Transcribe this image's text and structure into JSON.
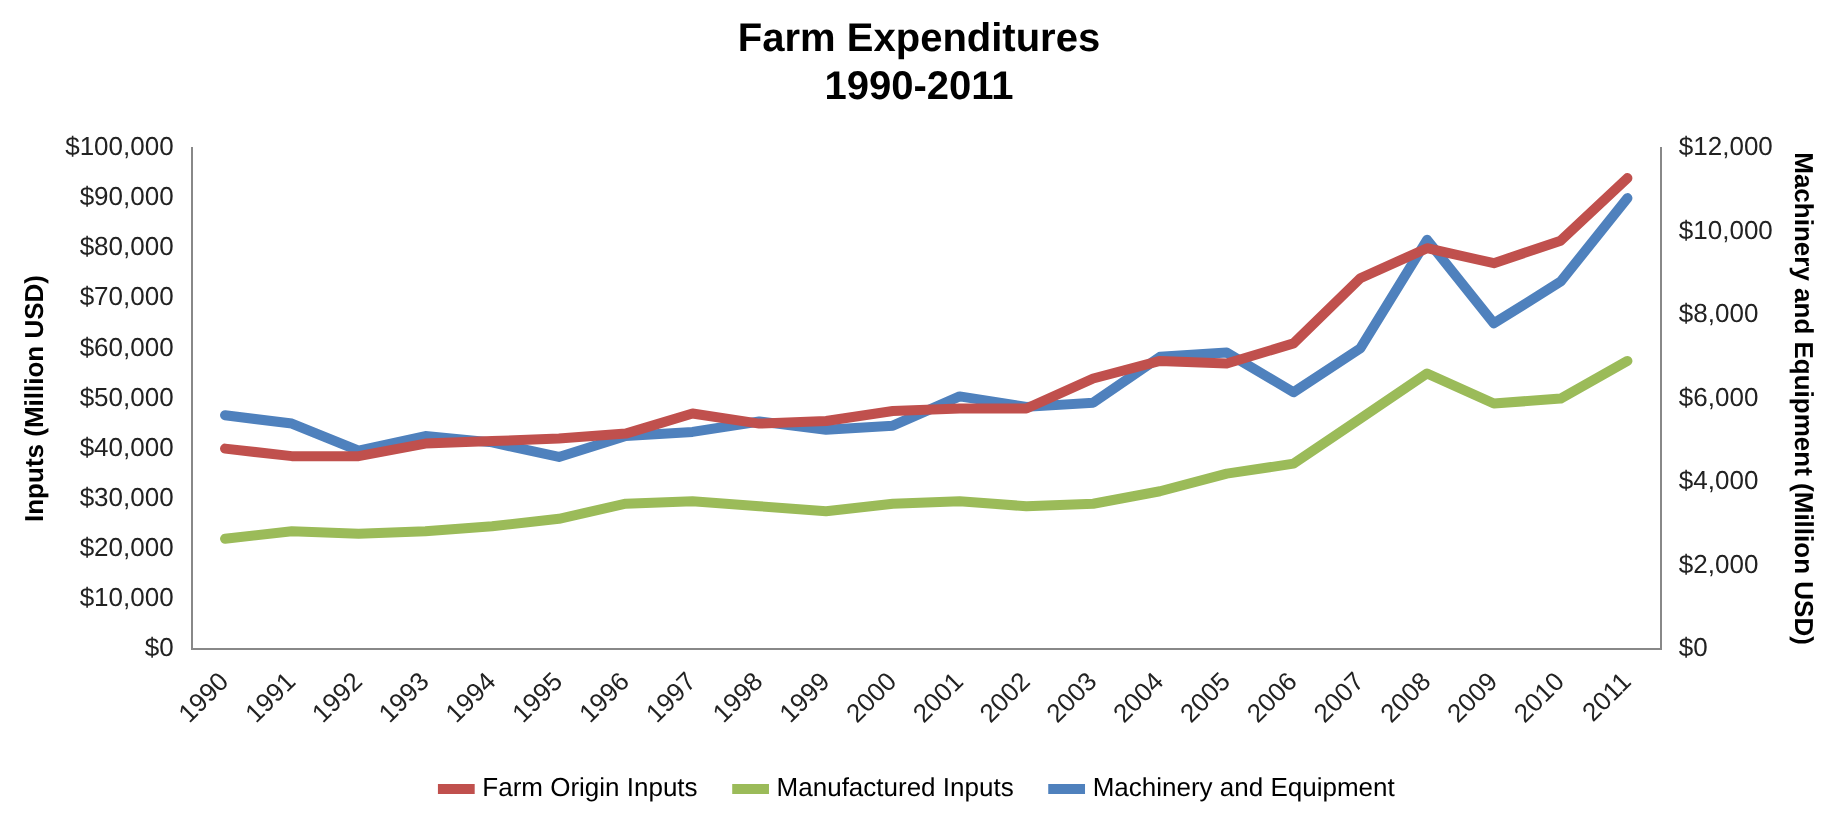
{
  "chart_data": {
    "type": "line",
    "title": "Farm Expenditures\n1990-2011",
    "ylabel": "Inputs (Million USD)",
    "y2label": "Machinery and Equipment (Million USD)",
    "categories": [
      "1990",
      "1991",
      "1992",
      "1993",
      "1994",
      "1995",
      "1996",
      "1997",
      "1998",
      "1999",
      "2000",
      "2001",
      "2002",
      "2003",
      "2004",
      "2005",
      "2006",
      "2007",
      "2008",
      "2009",
      "2010",
      "2011"
    ],
    "series": [
      {
        "name": "Farm Origin Inputs",
        "color": "#c0504d",
        "values": [
          40000,
          38500,
          38500,
          41000,
          41500,
          42000,
          43000,
          47000,
          45000,
          45500,
          47500,
          48000,
          48000,
          54000,
          57500,
          57000,
          61000,
          74000,
          80000,
          77000,
          81500,
          94000
        ]
      },
      {
        "name": "Manufactured Inputs",
        "color": "#9bbb59",
        "values": [
          22000,
          23500,
          23000,
          23500,
          24500,
          26000,
          29000,
          29500,
          28500,
          27500,
          29000,
          29500,
          28500,
          29000,
          31500,
          35000,
          37000,
          46000,
          55000,
          49000,
          50000,
          57500
        ]
      },
      {
        "name": "Machinery and Equipment",
        "color": "#4f81bd",
        "axis": "y2",
        "values": [
          5600,
          5400,
          4750,
          5100,
          4950,
          4600,
          5100,
          5200,
          5450,
          5250,
          5350,
          6050,
          5800,
          5900,
          7000,
          7100,
          6150,
          7200,
          9800,
          7800,
          8800,
          10800
        ]
      }
    ],
    "ylim": [
      0,
      100000
    ],
    "yticks": [
      {
        "value": 0,
        "label": "$0"
      },
      {
        "value": 10000,
        "label": "$10,000"
      },
      {
        "value": 20000,
        "label": "$20,000"
      },
      {
        "value": 30000,
        "label": "$30,000"
      },
      {
        "value": 40000,
        "label": "$40,000"
      },
      {
        "value": 50000,
        "label": "$50,000"
      },
      {
        "value": 60000,
        "label": "$60,000"
      },
      {
        "value": 70000,
        "label": "$70,000"
      },
      {
        "value": 80000,
        "label": "$80,000"
      },
      {
        "value": 90000,
        "label": "$90,000"
      },
      {
        "value": 100000,
        "label": "$100,000"
      }
    ],
    "y2lim": [
      0,
      12000
    ],
    "y2ticks": [
      {
        "value": 0,
        "label": "$0"
      },
      {
        "value": 2000,
        "label": "$2,000"
      },
      {
        "value": 4000,
        "label": "$4,000"
      },
      {
        "value": 6000,
        "label": "$6,000"
      },
      {
        "value": 8000,
        "label": "$8,000"
      },
      {
        "value": 10000,
        "label": "$10,000"
      },
      {
        "value": 12000,
        "label": "$12,000"
      }
    ],
    "grid": false,
    "legend": "bottom",
    "marker": "none",
    "line_style": "solid"
  }
}
